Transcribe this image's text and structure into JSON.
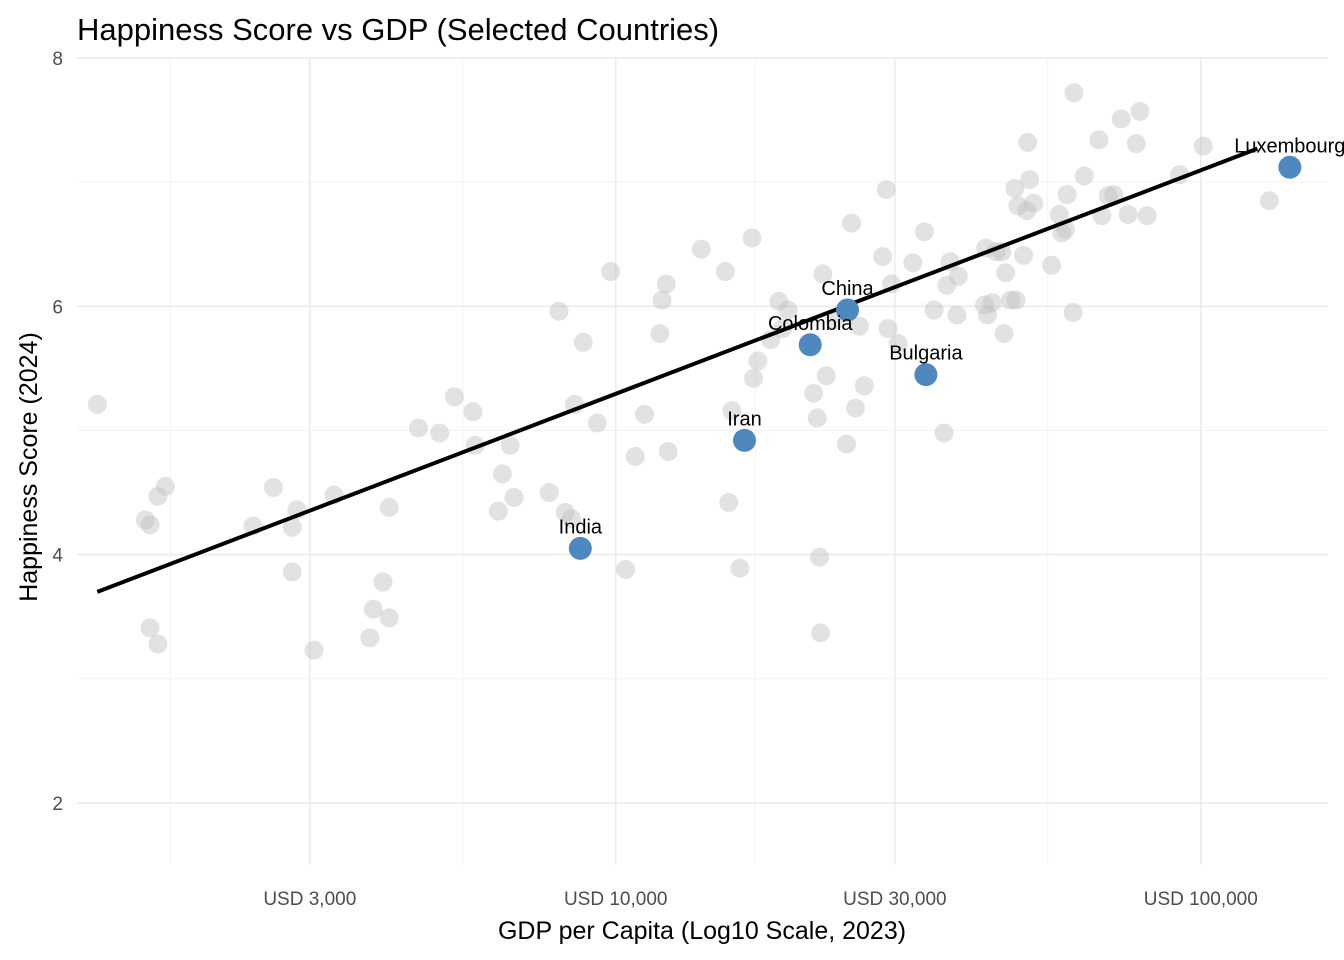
{
  "chart_data": {
    "type": "scatter",
    "title": "Happiness Score vs GDP (Selected Countries)",
    "xlabel": "GDP per Capita (Log10 Scale, 2023)",
    "ylabel": "Happiness Score (2024)",
    "x_scale": "log10",
    "xlim": [
      1200,
      165000
    ],
    "ylim": [
      1.5,
      8.0
    ],
    "x_ticks": [
      {
        "value": 3000,
        "label": "USD 3,000"
      },
      {
        "value": 10000,
        "label": "USD 10,000"
      },
      {
        "value": 30000,
        "label": "USD 30,000"
      },
      {
        "value": 100000,
        "label": "USD 100,000"
      }
    ],
    "x_minor_ticks": [
      1732,
      5477,
      17320,
      54772
    ],
    "y_ticks": [
      {
        "value": 2,
        "label": "2"
      },
      {
        "value": 4,
        "label": "4"
      },
      {
        "value": 6,
        "label": "6"
      },
      {
        "value": 8,
        "label": "8"
      }
    ],
    "y_minor_ticks": [
      3,
      5,
      7
    ],
    "grid": true,
    "trend_line": {
      "x": [
        1300,
        125000
      ],
      "y": [
        3.7,
        7.27
      ]
    },
    "background_points": [
      [
        1300,
        5.21
      ],
      [
        1570,
        4.28
      ],
      [
        1600,
        4.24
      ],
      [
        1650,
        4.47
      ],
      [
        1700,
        4.55
      ],
      [
        1600,
        3.41
      ],
      [
        1650,
        3.28
      ],
      [
        2400,
        4.23
      ],
      [
        2600,
        4.54
      ],
      [
        2800,
        3.86
      ],
      [
        2800,
        4.22
      ],
      [
        2850,
        4.36
      ],
      [
        3050,
        3.23
      ],
      [
        3300,
        4.48
      ],
      [
        3800,
        3.33
      ],
      [
        3850,
        3.56
      ],
      [
        4000,
        3.78
      ],
      [
        4100,
        3.49
      ],
      [
        4100,
        4.38
      ],
      [
        4600,
        5.02
      ],
      [
        5000,
        4.98
      ],
      [
        5300,
        5.27
      ],
      [
        5700,
        5.15
      ],
      [
        5750,
        4.88
      ],
      [
        6400,
        4.65
      ],
      [
        6300,
        4.35
      ],
      [
        6700,
        4.46
      ],
      [
        6600,
        4.88
      ],
      [
        7700,
        4.5
      ],
      [
        8000,
        5.96
      ],
      [
        8200,
        4.34
      ],
      [
        8400,
        4.29
      ],
      [
        8500,
        5.21
      ],
      [
        8800,
        5.71
      ],
      [
        9300,
        5.06
      ],
      [
        9800,
        6.28
      ],
      [
        10400,
        3.88
      ],
      [
        10800,
        4.79
      ],
      [
        11200,
        5.13
      ],
      [
        11900,
        5.78
      ],
      [
        12000,
        6.05
      ],
      [
        12200,
        6.18
      ],
      [
        12300,
        4.83
      ],
      [
        14000,
        6.46
      ],
      [
        15400,
        6.28
      ],
      [
        15600,
        4.42
      ],
      [
        15800,
        5.16
      ],
      [
        16300,
        3.89
      ],
      [
        17100,
        6.55
      ],
      [
        17200,
        5.42
      ],
      [
        17500,
        5.56
      ],
      [
        18400,
        5.73
      ],
      [
        19000,
        6.04
      ],
      [
        19300,
        5.82
      ],
      [
        19700,
        5.97
      ],
      [
        21800,
        5.3
      ],
      [
        22100,
        5.1
      ],
      [
        22300,
        3.98
      ],
      [
        22400,
        3.37
      ],
      [
        22600,
        6.26
      ],
      [
        22900,
        5.44
      ],
      [
        23700,
        5.89
      ],
      [
        24800,
        4.89
      ],
      [
        25300,
        6.67
      ],
      [
        25700,
        5.18
      ],
      [
        26100,
        5.84
      ],
      [
        26600,
        5.36
      ],
      [
        28600,
        6.4
      ],
      [
        29000,
        6.94
      ],
      [
        29200,
        5.82
      ],
      [
        29600,
        6.18
      ],
      [
        30400,
        5.7
      ],
      [
        32200,
        6.35
      ],
      [
        33700,
        6.6
      ],
      [
        35000,
        5.97
      ],
      [
        36400,
        4.98
      ],
      [
        36800,
        6.17
      ],
      [
        37300,
        6.36
      ],
      [
        38300,
        5.93
      ],
      [
        38500,
        6.24
      ],
      [
        42700,
        6.01
      ],
      [
        42900,
        6.47
      ],
      [
        43200,
        5.93
      ],
      [
        44000,
        6.03
      ],
      [
        44700,
        6.44
      ],
      [
        45700,
        6.44
      ],
      [
        46100,
        5.78
      ],
      [
        46400,
        6.27
      ],
      [
        47300,
        6.05
      ],
      [
        48100,
        6.95
      ],
      [
        48300,
        6.05
      ],
      [
        48700,
        6.81
      ],
      [
        49800,
        6.41
      ],
      [
        50400,
        6.77
      ],
      [
        50600,
        7.32
      ],
      [
        51000,
        7.02
      ],
      [
        51800,
        6.83
      ],
      [
        55600,
        6.33
      ],
      [
        57300,
        6.74
      ],
      [
        57900,
        6.59
      ],
      [
        58700,
        6.62
      ],
      [
        59100,
        6.9
      ],
      [
        60500,
        5.95
      ],
      [
        60700,
        7.72
      ],
      [
        63200,
        7.05
      ],
      [
        67000,
        7.34
      ],
      [
        67800,
        6.73
      ],
      [
        69500,
        6.89
      ],
      [
        71000,
        6.9
      ],
      [
        73100,
        7.51
      ],
      [
        75100,
        6.74
      ],
      [
        77600,
        7.31
      ],
      [
        78700,
        7.57
      ],
      [
        81000,
        6.73
      ],
      [
        92000,
        7.06
      ],
      [
        101000,
        7.29
      ],
      [
        131000,
        6.85
      ]
    ],
    "highlighted": [
      {
        "name": "India",
        "x": 8700,
        "y": 4.05
      },
      {
        "name": "Iran",
        "x": 16600,
        "y": 4.92
      },
      {
        "name": "Colombia",
        "x": 21500,
        "y": 5.69
      },
      {
        "name": "China",
        "x": 24900,
        "y": 5.97
      },
      {
        "name": "Bulgaria",
        "x": 33900,
        "y": 5.45
      },
      {
        "name": "Luxembourg",
        "x": 142000,
        "y": 7.12
      }
    ],
    "background_point_color": "#bebebe",
    "highlight_color": "#4f88bf",
    "trend_color": "#000000"
  }
}
